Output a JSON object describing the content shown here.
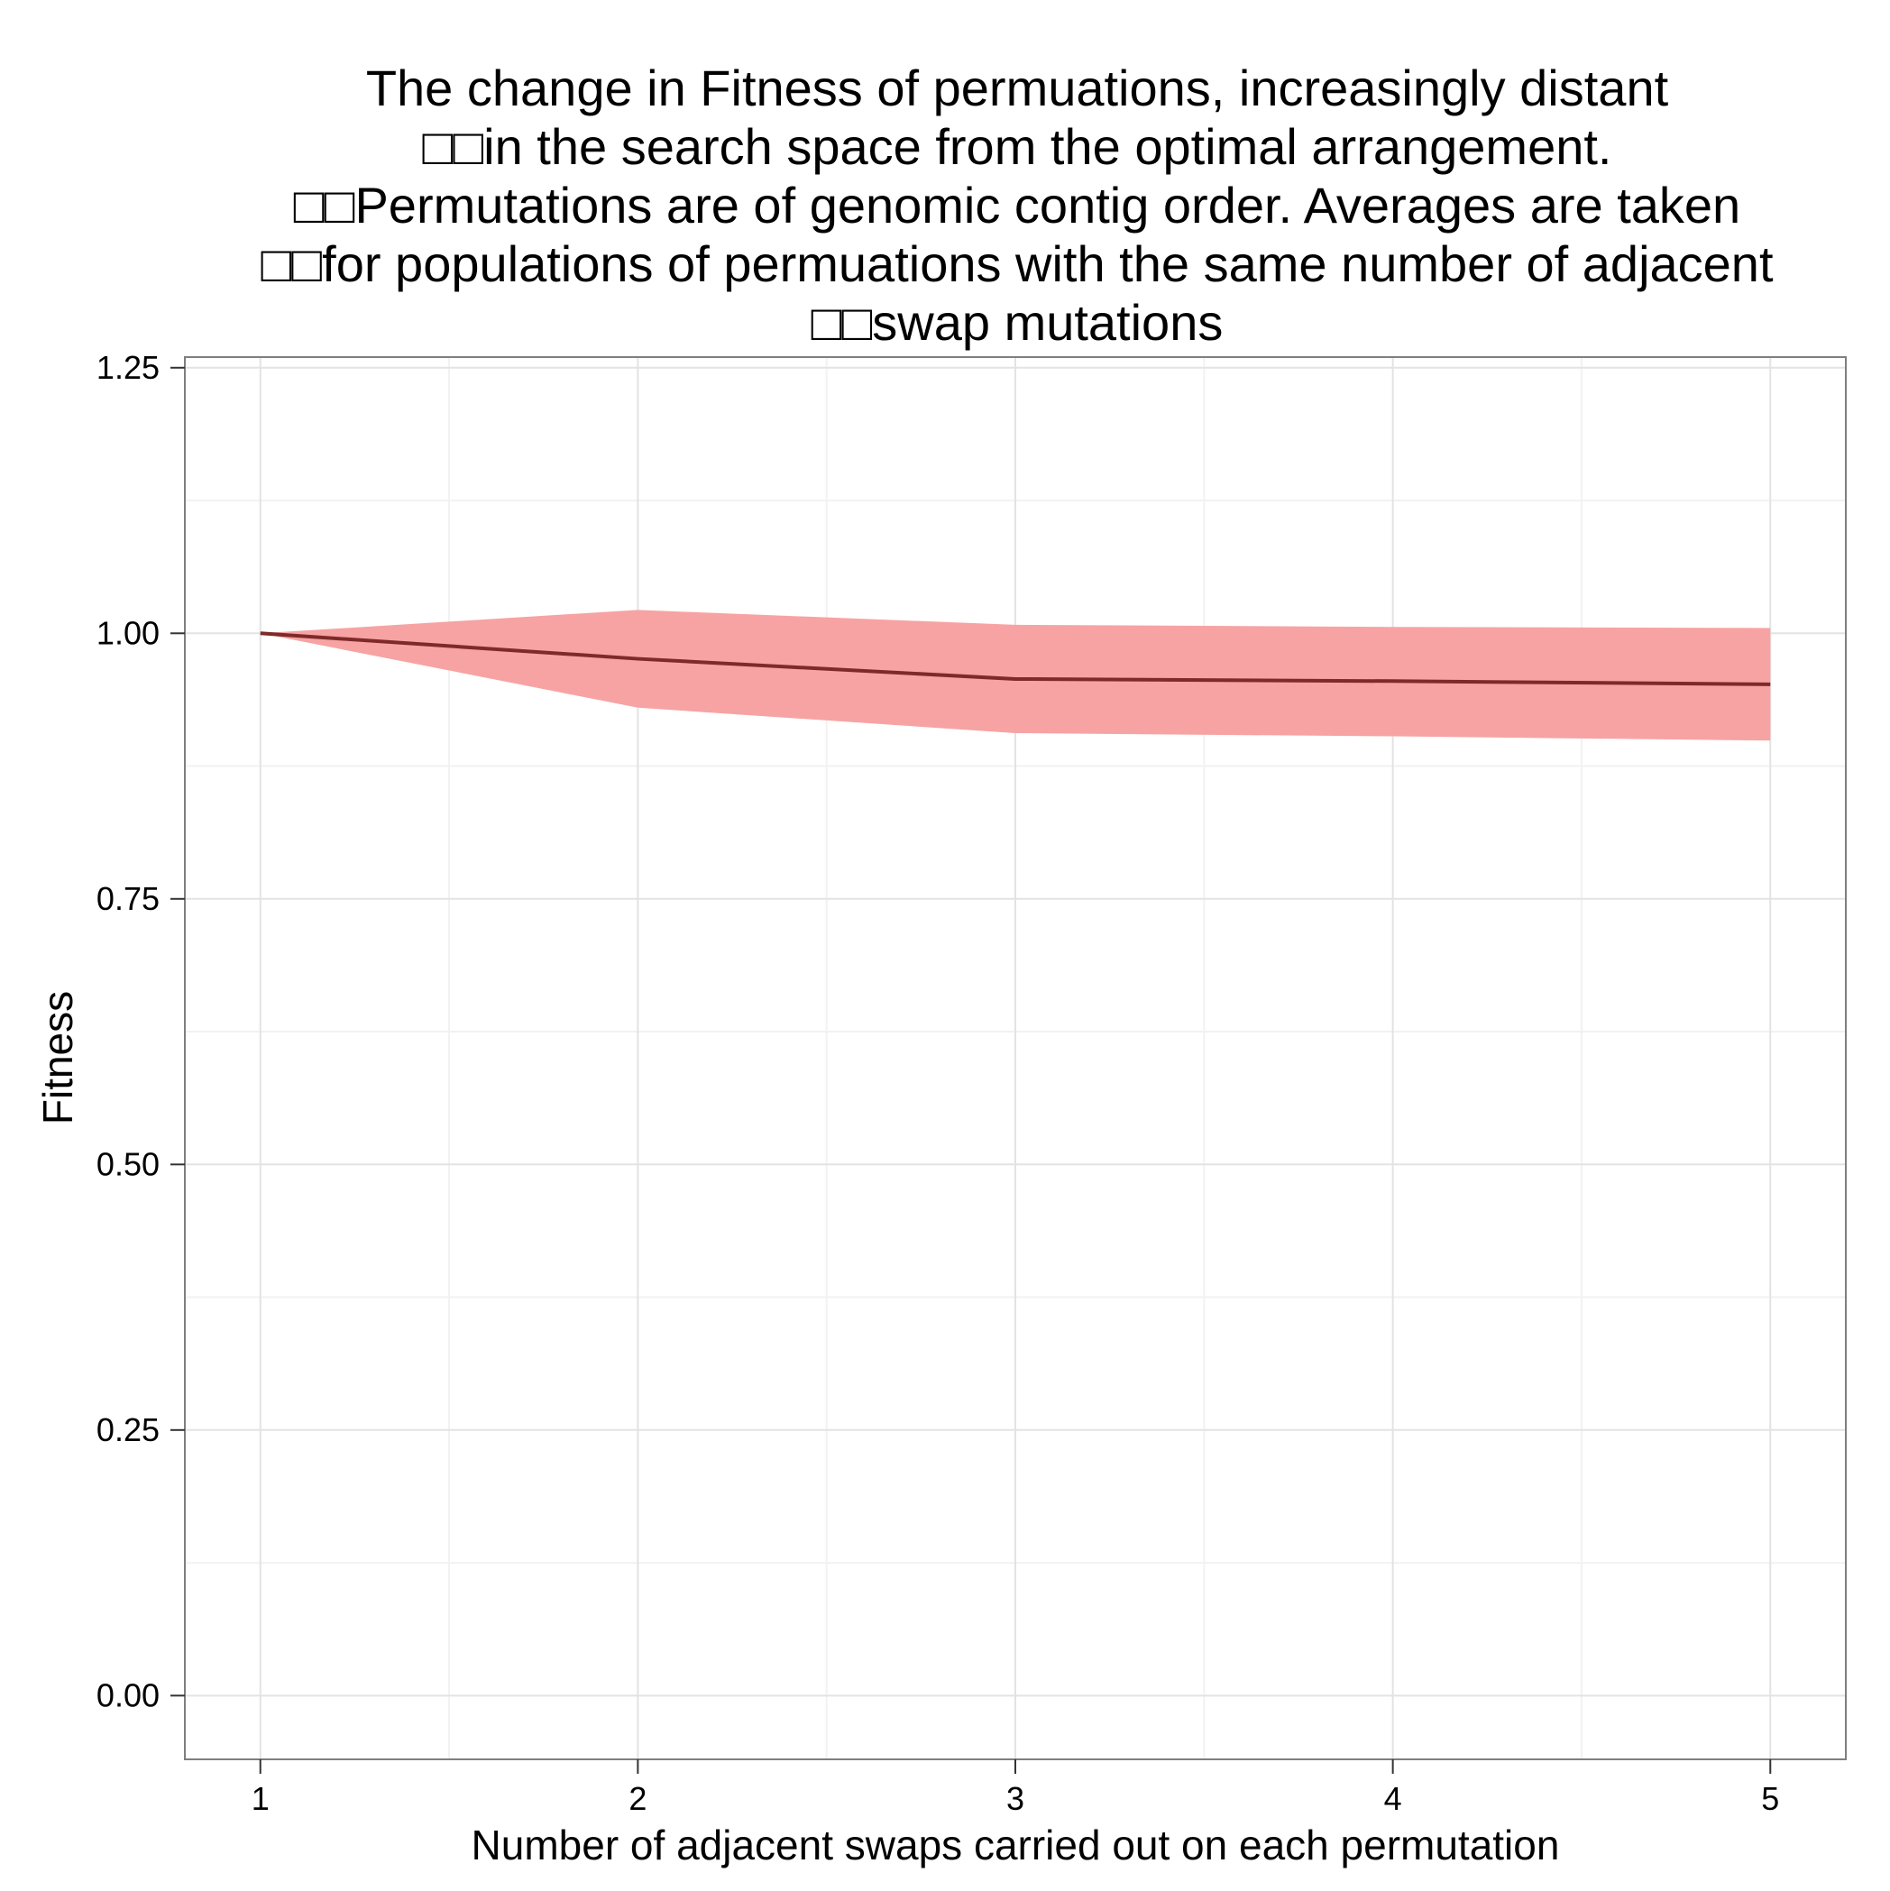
{
  "chart_data": {
    "type": "line",
    "title_lines": [
      "The change in Fitness of permuations, increasingly distant",
      "□□in the search space from the optimal arrangement.",
      "□□Permutations are of genomic contig order. Averages are taken",
      "□□for populations of permuations with the same number of adjacent",
      "□□swap mutations"
    ],
    "xlabel": "Number of adjacent swaps carried out on each permutation",
    "ylabel": "Fitness",
    "x": [
      1,
      2,
      3,
      4,
      5
    ],
    "x_ticks": [
      "1",
      "2",
      "3",
      "4",
      "5"
    ],
    "y_ticks": [
      "0.00",
      "0.25",
      "0.50",
      "0.75",
      "1.00",
      "1.25"
    ],
    "xlim": [
      0.8,
      5.2
    ],
    "ylim": [
      -0.06,
      1.26
    ],
    "grid": true,
    "series": [
      {
        "values": [
          1.0,
          0.976,
          0.957,
          0.955,
          0.952
        ],
        "lower": [
          1.0,
          0.93,
          0.906,
          0.903,
          0.899
        ],
        "upper": [
          1.0,
          1.022,
          1.008,
          1.006,
          1.005
        ],
        "line_color": "#7f2a2a",
        "band_color": "#f7a3a3"
      }
    ]
  }
}
